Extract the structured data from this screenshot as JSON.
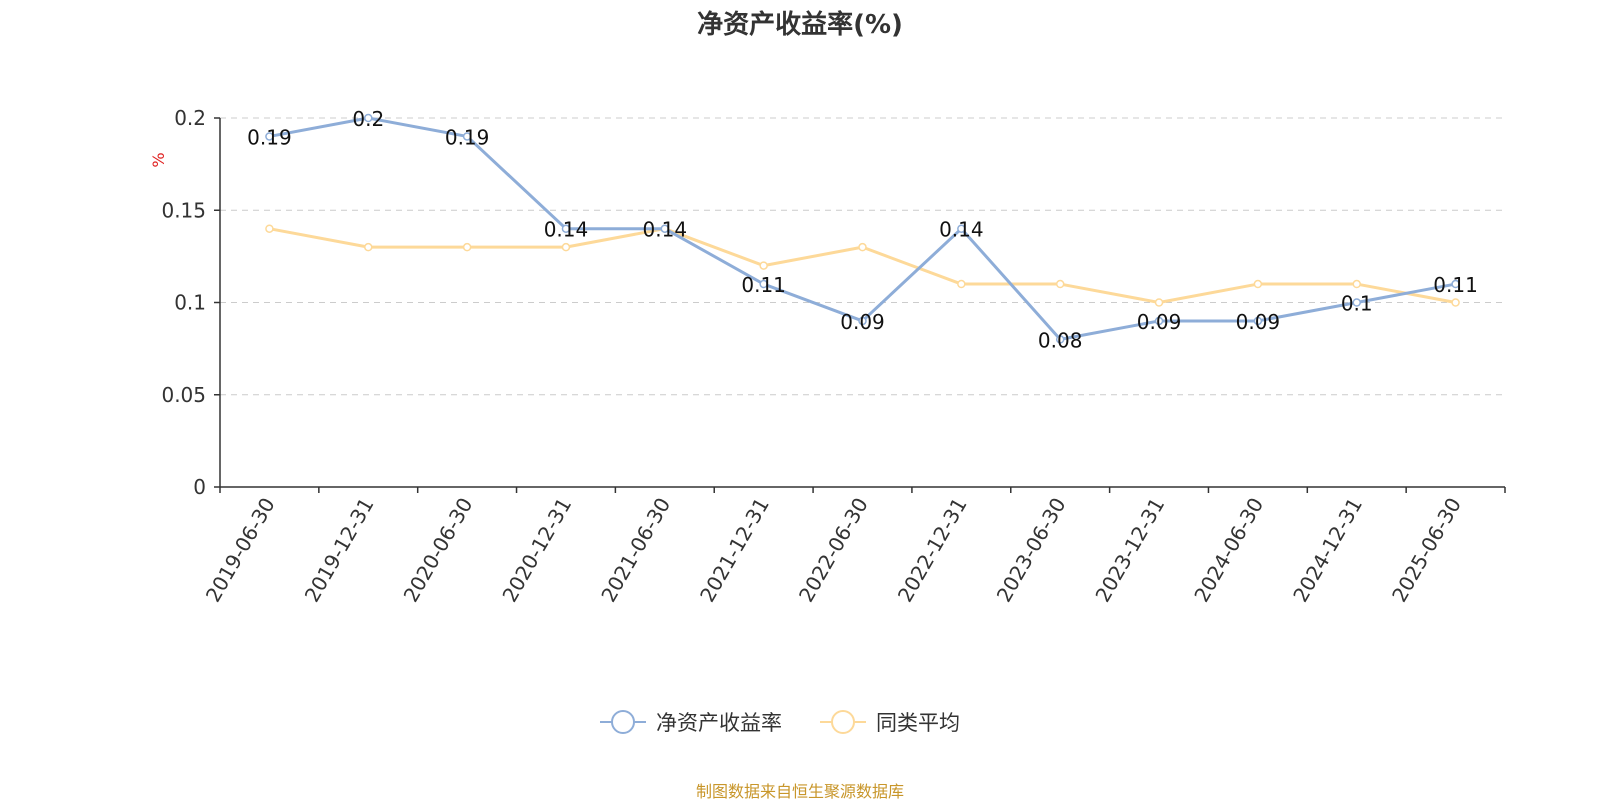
{
  "chart_data": {
    "type": "line",
    "title": "净资产收益率(%)",
    "ylabel": "%",
    "ylim": [
      0,
      0.2
    ],
    "yticks": [
      "0",
      "0.05",
      "0.1",
      "0.15",
      "0.2"
    ],
    "ytick_values": [
      0,
      0.05,
      0.1,
      0.15,
      0.2
    ],
    "grid": true,
    "legend_position": "bottom",
    "categories": [
      "2019-06-30",
      "2019-12-31",
      "2020-06-30",
      "2020-12-31",
      "2021-06-30",
      "2021-12-31",
      "2022-06-30",
      "2022-12-31",
      "2023-06-30",
      "2023-12-31",
      "2024-06-30",
      "2024-12-31",
      "2025-06-30"
    ],
    "series": [
      {
        "name": "净资产收益率",
        "color": "#8eadd8",
        "values": [
          0.19,
          0.2,
          0.19,
          0.14,
          0.14,
          0.11,
          0.09,
          0.14,
          0.08,
          0.09,
          0.09,
          0.1,
          0.11
        ],
        "labels": [
          "0.19",
          "0.2",
          "0.19",
          "0.14",
          "0.14",
          "0.11",
          "0.09",
          "0.14",
          "0.08",
          "0.09",
          "0.09",
          "0.1",
          "0.11"
        ]
      },
      {
        "name": "同类平均",
        "color": "#fdd999",
        "values": [
          0.14,
          0.13,
          0.13,
          0.13,
          0.14,
          0.12,
          0.13,
          0.11,
          0.11,
          0.1,
          0.11,
          0.11,
          0.1
        ]
      }
    ],
    "source": "制图数据来自恒生聚源数据库"
  }
}
